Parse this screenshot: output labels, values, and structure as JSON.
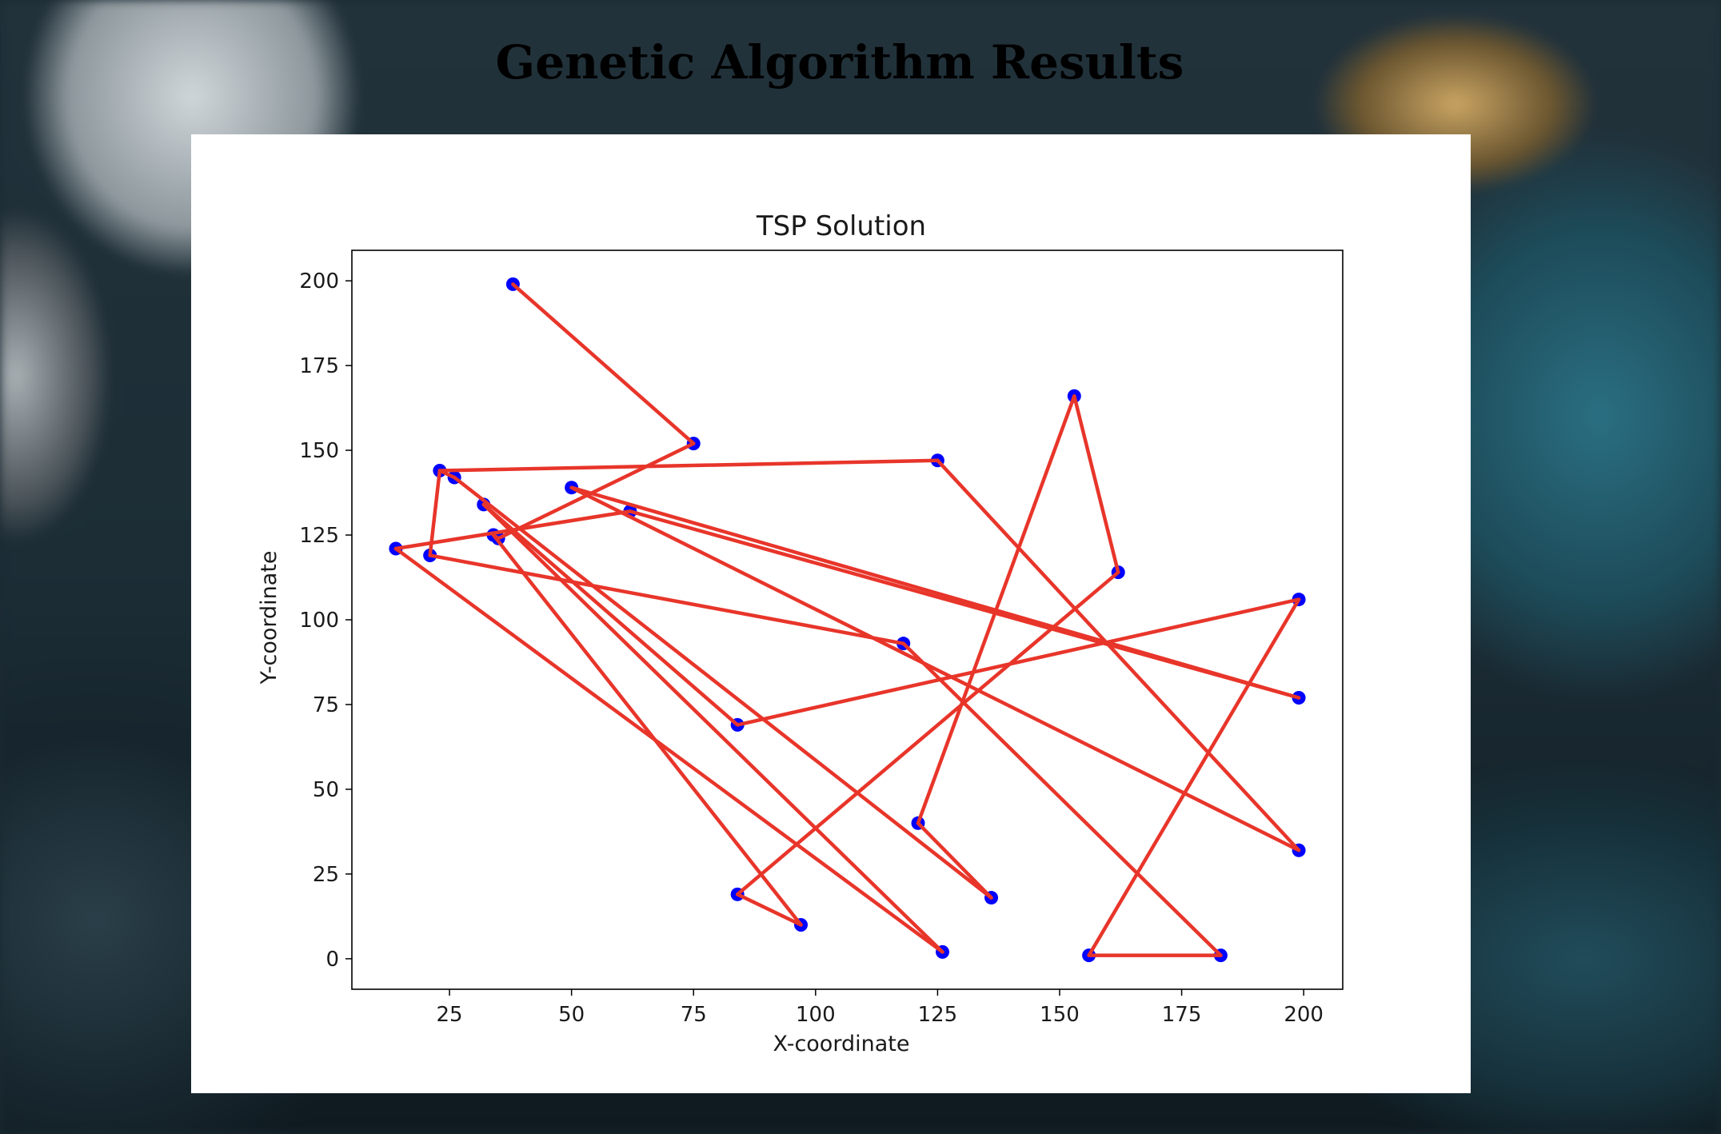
{
  "page": {
    "title": "Genetic Algorithm Results"
  },
  "chart_data": {
    "type": "line",
    "title": "TSP Solution",
    "xlabel": "X-coordinate",
    "ylabel": "Y-coordinate",
    "xlim": [
      5,
      208
    ],
    "ylim": [
      -9,
      209
    ],
    "xticks": [
      25,
      50,
      75,
      100,
      125,
      150,
      175,
      200
    ],
    "yticks": [
      0,
      25,
      50,
      75,
      100,
      125,
      150,
      175,
      200
    ],
    "grid": false,
    "point_color": "#0000ff",
    "line_color": "#e8352a",
    "tour": [
      {
        "x": 38,
        "y": 199
      },
      {
        "x": 75,
        "y": 152
      },
      {
        "x": 35,
        "y": 124
      },
      {
        "x": 34,
        "y": 125
      },
      {
        "x": 97,
        "y": 10
      },
      {
        "x": 84,
        "y": 19
      },
      {
        "x": 162,
        "y": 114
      },
      {
        "x": 153,
        "y": 166
      },
      {
        "x": 121,
        "y": 40
      },
      {
        "x": 136,
        "y": 18
      },
      {
        "x": 26,
        "y": 142
      },
      {
        "x": 23,
        "y": 144
      },
      {
        "x": 125,
        "y": 147
      },
      {
        "x": 199,
        "y": 32
      },
      {
        "x": 50,
        "y": 139
      },
      {
        "x": 199,
        "y": 77
      },
      {
        "x": 62,
        "y": 132
      },
      {
        "x": 14,
        "y": 121
      },
      {
        "x": 126,
        "y": 2
      },
      {
        "x": 32,
        "y": 134
      },
      {
        "x": 84,
        "y": 69
      },
      {
        "x": 199,
        "y": 106
      },
      {
        "x": 156,
        "y": 1
      },
      {
        "x": 183,
        "y": 1
      },
      {
        "x": 118,
        "y": 93
      },
      {
        "x": 21,
        "y": 119
      },
      {
        "x": 23,
        "y": 144
      }
    ]
  }
}
